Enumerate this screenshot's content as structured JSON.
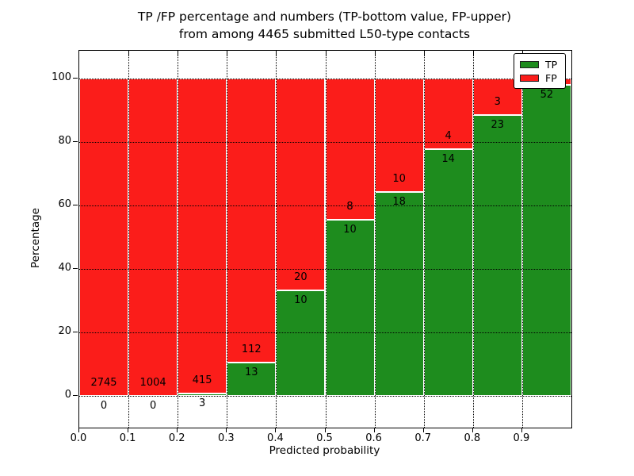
{
  "title": {
    "line1": "TP /FP percentage and numbers (TP-bottom value, FP-upper)",
    "line2": "from among 4465 submitted L50-type contacts"
  },
  "axes": {
    "xlabel": "Predicted probability",
    "ylabel": "Percentage"
  },
  "legend": {
    "position": "upper right",
    "items": [
      {
        "label": "TP",
        "color": "#1e8c1e"
      },
      {
        "label": "FP",
        "color": "#fb1d1a"
      }
    ]
  },
  "colors": {
    "tp_green": "#1e8c1e",
    "fp_red": "#fb1d1a",
    "grid": "#000000",
    "bar_edge": "#ffffff",
    "background": "#ffffff",
    "text": "#000000"
  },
  "chart_data": {
    "type": "bar",
    "stacked": true,
    "normalized": "each bin scaled to 100%",
    "title": "TP /FP percentage and numbers (TP-bottom value, FP-upper) from among 4465 submitted L50-type contacts",
    "xlabel": "Predicted probability",
    "ylabel": "Percentage",
    "xlim": [
      0.0,
      1.0
    ],
    "ylim": [
      -10,
      108.75
    ],
    "x_tick_labels": [
      "0.0",
      "0.1",
      "0.2",
      "0.3",
      "0.4",
      "0.5",
      "0.6",
      "0.7",
      "0.8",
      "0.9"
    ],
    "y_ticks": [
      0,
      20,
      40,
      60,
      80,
      100
    ],
    "grid": "dotted black, both axes",
    "legend_position": "upper right",
    "total_submitted": 4465,
    "series": [
      {
        "name": "TP",
        "color": "#1e8c1e",
        "stack_position": "bottom"
      },
      {
        "name": "FP",
        "color": "#fb1d1a",
        "stack_position": "top"
      }
    ],
    "bins": [
      {
        "x_range": [
          0.0,
          0.1
        ],
        "tp": 0,
        "fp": 2745,
        "tp_label": "0",
        "fp_label": "2745"
      },
      {
        "x_range": [
          0.1,
          0.2
        ],
        "tp": 0,
        "fp": 1004,
        "tp_label": "0",
        "fp_label": "1004"
      },
      {
        "x_range": [
          0.2,
          0.3
        ],
        "tp": 3,
        "fp": 415,
        "tp_label": "3",
        "fp_label": "415"
      },
      {
        "x_range": [
          0.3,
          0.4
        ],
        "tp": 13,
        "fp": 112,
        "tp_label": "13",
        "fp_label": "112"
      },
      {
        "x_range": [
          0.4,
          0.5
        ],
        "tp": 10,
        "fp": 20,
        "tp_label": "10",
        "fp_label": "20"
      },
      {
        "x_range": [
          0.5,
          0.6
        ],
        "tp": 10,
        "fp": 8,
        "tp_label": "10",
        "fp_label": "8"
      },
      {
        "x_range": [
          0.6,
          0.7
        ],
        "tp": 18,
        "fp": 10,
        "tp_label": "18",
        "fp_label": "10"
      },
      {
        "x_range": [
          0.7,
          0.8
        ],
        "tp": 14,
        "fp": 4,
        "tp_label": "14",
        "fp_label": "4"
      },
      {
        "x_range": [
          0.8,
          0.9
        ],
        "tp": 23,
        "fp": 3,
        "tp_label": "23",
        "fp_label": "3"
      },
      {
        "x_range": [
          0.9,
          1.0
        ],
        "tp": 52,
        "fp": 1,
        "tp_label": "52",
        "fp_label": ""
      }
    ],
    "notes": "FP count label of the last bin is hidden behind the legend box in the rendered image."
  }
}
